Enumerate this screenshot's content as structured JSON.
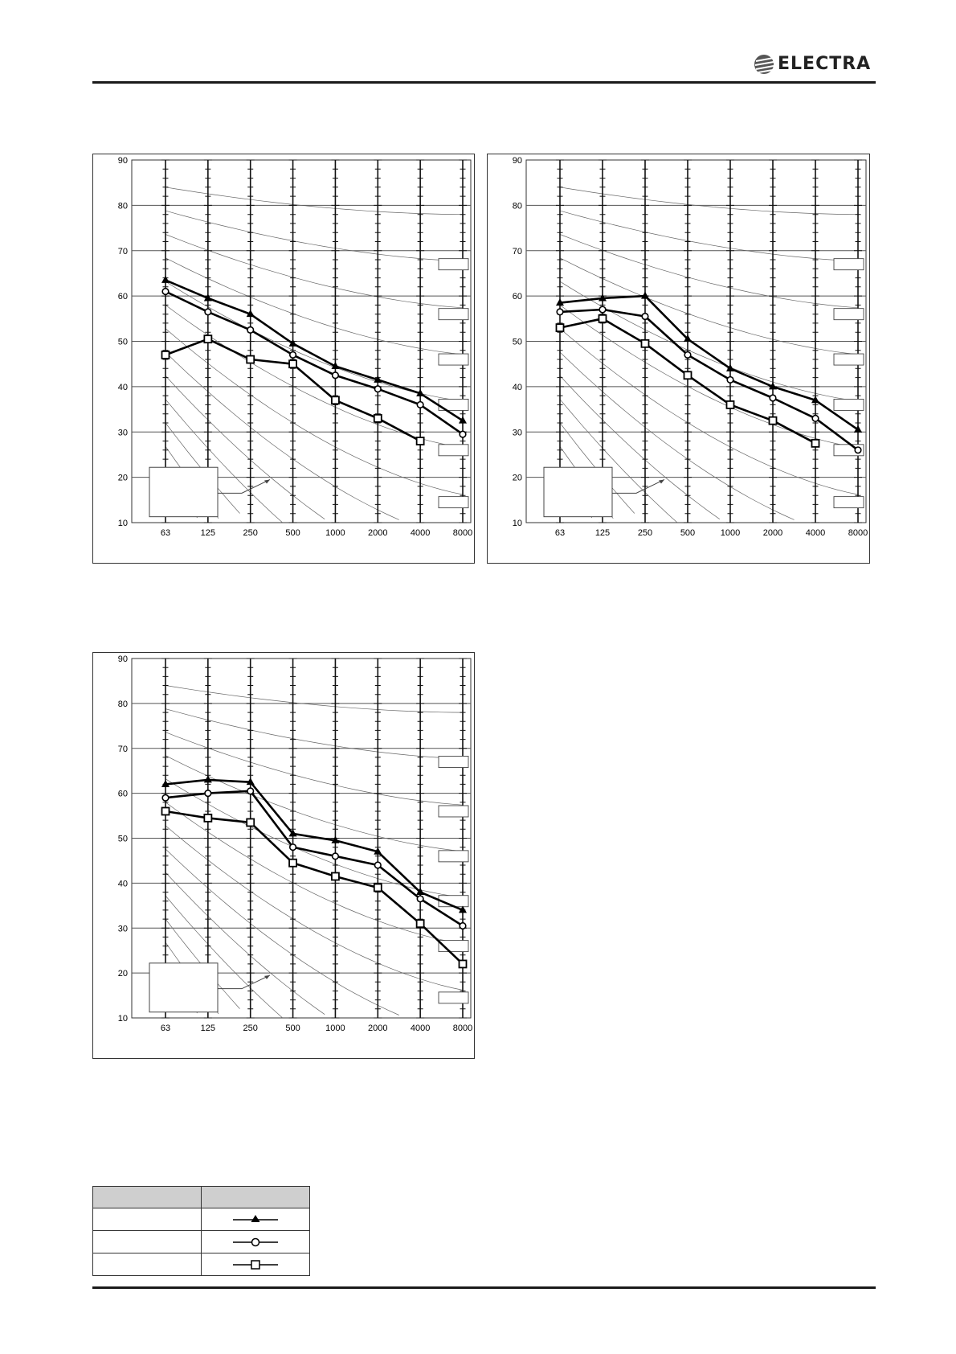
{
  "header": {
    "brand": "ELECTRA"
  },
  "series_styles": [
    {
      "marker": "triangle"
    },
    {
      "marker": "circle"
    },
    {
      "marker": "square"
    }
  ],
  "chart_data": [
    {
      "type": "line",
      "x_labels": [
        "63",
        "125",
        "250",
        "500",
        "1000",
        "2000",
        "4000",
        "8000"
      ],
      "y_ticks": [
        90,
        80,
        70,
        60,
        50,
        40,
        30,
        20,
        10
      ],
      "ylim": [
        10,
        90
      ],
      "grid": "horizontal",
      "series": [
        {
          "values": [
            63.5,
            59.5,
            56,
            49.5,
            44.5,
            41.5,
            38.5,
            32.5
          ]
        },
        {
          "values": [
            61,
            56.5,
            52.5,
            47,
            42.5,
            39.5,
            36,
            29.5
          ]
        },
        {
          "values": [
            47,
            50.5,
            46,
            45,
            37,
            33,
            28,
            null
          ]
        }
      ]
    },
    {
      "type": "line",
      "x_labels": [
        "63",
        "125",
        "250",
        "500",
        "1000",
        "2000",
        "4000",
        "8000"
      ],
      "y_ticks": [
        90,
        80,
        70,
        60,
        50,
        40,
        30,
        20,
        10
      ],
      "ylim": [
        10,
        90
      ],
      "grid": "horizontal",
      "series": [
        {
          "values": [
            58.5,
            59.5,
            60,
            50.5,
            44,
            40,
            37,
            30.5
          ]
        },
        {
          "values": [
            56.5,
            57,
            55.5,
            47,
            41.5,
            37.5,
            33,
            26
          ]
        },
        {
          "values": [
            53,
            55,
            49.5,
            42.5,
            36,
            32.5,
            27.5,
            null
          ]
        }
      ]
    },
    {
      "type": "line",
      "x_labels": [
        "63",
        "125",
        "250",
        "500",
        "1000",
        "2000",
        "4000",
        "8000"
      ],
      "y_ticks": [
        90,
        80,
        70,
        60,
        50,
        40,
        30,
        20,
        10
      ],
      "ylim": [
        10,
        90
      ],
      "grid": "horizontal",
      "series": [
        {
          "values": [
            62,
            63,
            62.5,
            51,
            49.5,
            47,
            38,
            34
          ]
        },
        {
          "values": [
            59,
            60,
            60.5,
            48,
            46,
            44,
            36.5,
            30.5
          ]
        },
        {
          "values": [
            56,
            54.5,
            53.5,
            44.5,
            41.5,
            39,
            31,
            22
          ]
        }
      ]
    }
  ],
  "legend": {
    "header": [
      "",
      ""
    ],
    "rows": [
      {
        "label": "",
        "marker": "triangle"
      },
      {
        "label": "",
        "marker": "circle"
      },
      {
        "label": "",
        "marker": "square"
      }
    ]
  }
}
